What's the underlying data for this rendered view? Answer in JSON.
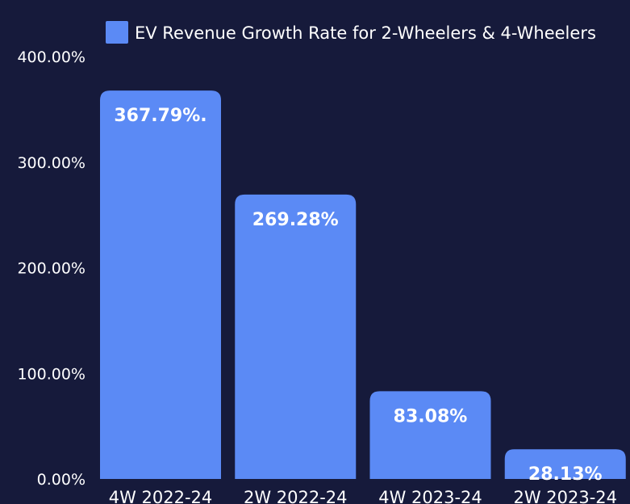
{
  "chart_data": {
    "type": "bar",
    "title": "",
    "xlabel": "",
    "ylabel": "",
    "categories": [
      "4W 2022-24",
      "2W 2022-24",
      "4W 2023-24",
      "2W 2023-24"
    ],
    "series": [
      {
        "name": "EV Revenue Growth Rate for 2-Wheelers & 4-Wheelers",
        "values": [
          367.79,
          269.28,
          83.08,
          28.13
        ],
        "data_labels": [
          "367.79%.",
          "269.28%",
          "83.08%",
          "28.13%"
        ]
      }
    ],
    "ylim": [
      0,
      400
    ],
    "y_ticks": [
      0,
      100,
      200,
      300,
      400
    ],
    "y_tick_labels": [
      "0.00%",
      "100.00%",
      "200.00%",
      "300.00%",
      "400.00%"
    ],
    "legend_position": "top-right",
    "grid": false,
    "colors": {
      "background": "#161a3b",
      "bar": "#5b8af5",
      "text": "#ffffff"
    }
  }
}
